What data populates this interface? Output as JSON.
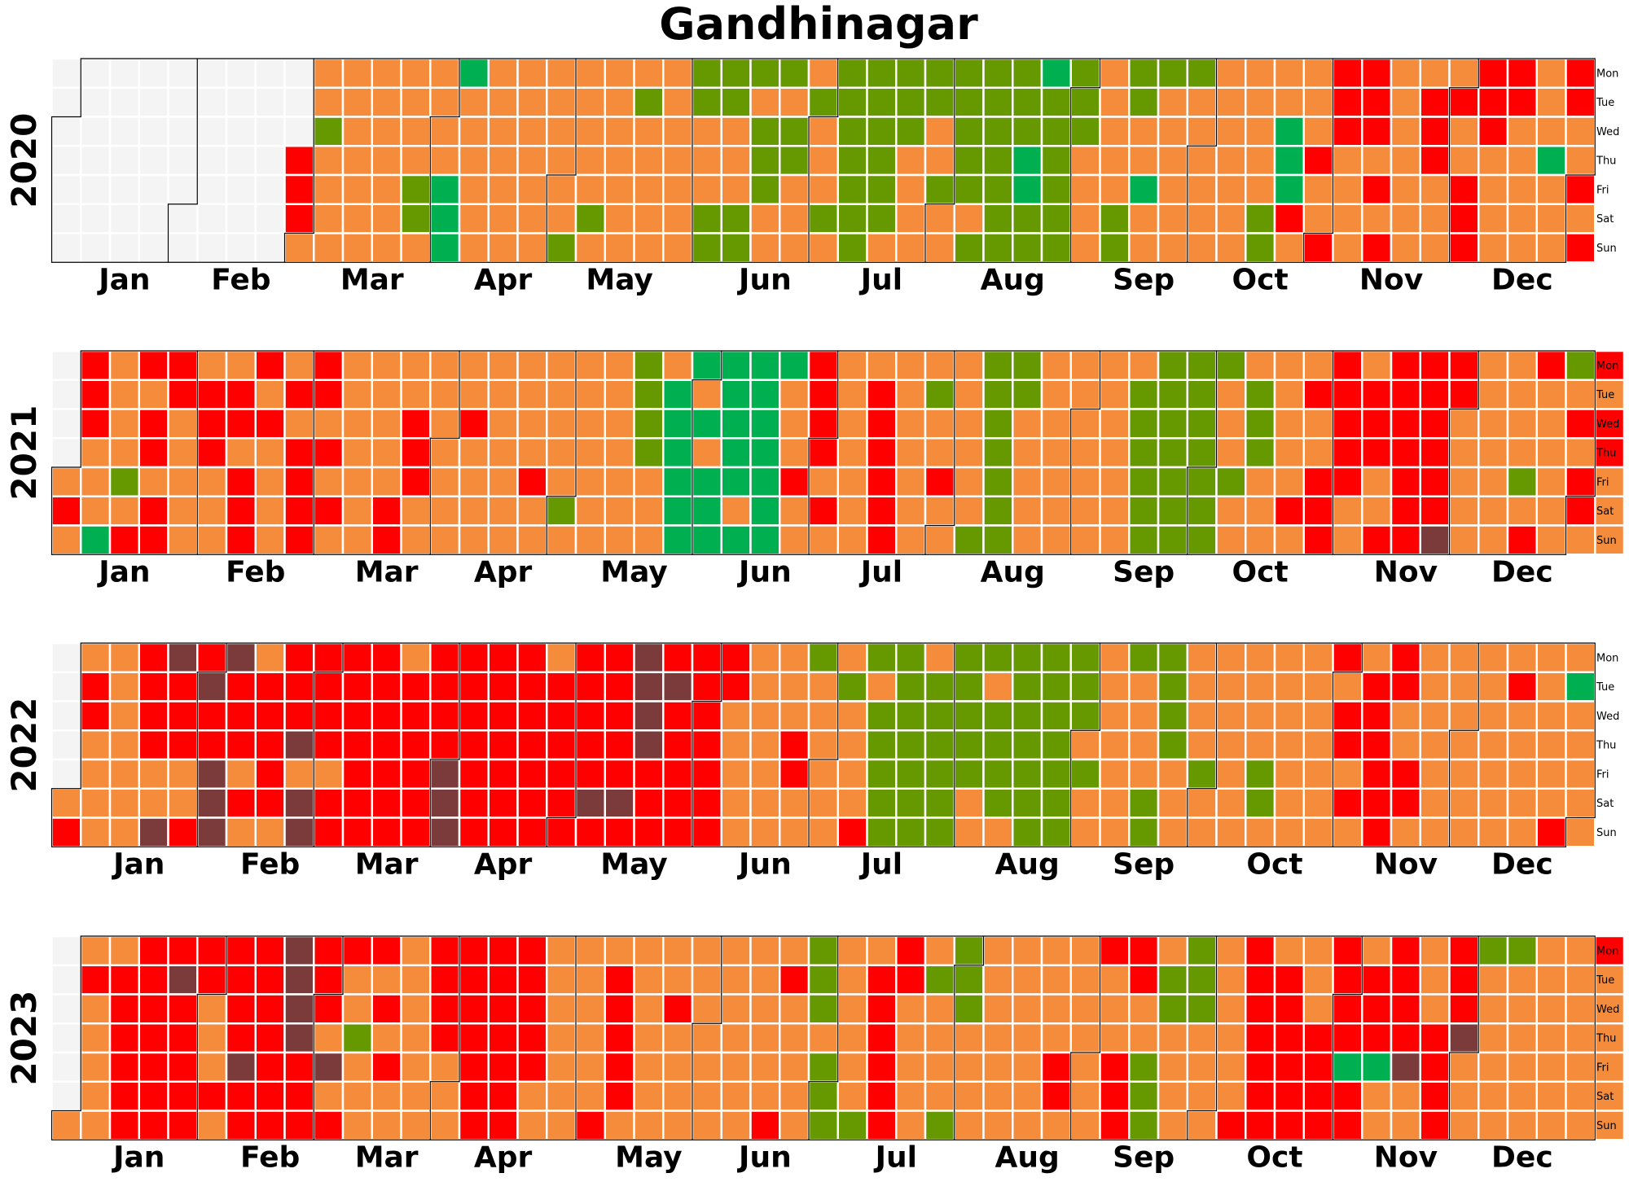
{
  "chart_data": {
    "type": "heatmap",
    "title": "Gandhinagar",
    "weekday_labels": [
      "Mon",
      "Tue",
      "Wed",
      "Thu",
      "Fri",
      "Sat",
      "Sun"
    ],
    "month_labels": [
      "Jan",
      "Feb",
      "Mar",
      "Apr",
      "May",
      "Jun",
      "Jul",
      "Aug",
      "Sep",
      "Oct",
      "Nov",
      "Dec"
    ],
    "category_colors": {
      "N": "#f4f4f4",
      "A": "#00b050",
      "B": "#669900",
      "C": "#f58c3c",
      "D": "#ff0000",
      "E": "#7b3b3b"
    },
    "years": [
      {
        "year": "2020",
        "weeks": [
          "NNNNNNN",
          "NNNNNNN",
          "NNNNNNN",
          "NNNNNNN",
          "NNNNNNN",
          "NNNNNNN",
          "NNNNNNN",
          "NNNNNNN",
          "NNNDDDC",
          "CCBCCCC",
          "CCCCCCC",
          "CCCCCCC",
          "CCCCBBC",
          "CCCCAAA",
          "ACCCCCC",
          "CCCCCCC",
          "CCCCCCC",
          "CCCCCCB",
          "CCCCCBC",
          "CCCCCCC",
          "CBCCCCC",
          "CCCCCCC",
          "BBCCCBB",
          "BBCCCBB",
          "BCBBBCC",
          "BCBBCCC",
          "CBCCCBC",
          "BBBBBBB",
          "BBBBBBC",
          "BBBCCCC",
          "BBCCBCC",
          "BBBBBCB",
          "BBBBBBB",
          "BBBAABB",
          "ABBBBBB",
          "BBBCCCC",
          "CCCCCBB",
          "BBCCACC",
          "BCCCCCC",
          "BCCCCCC",
          "CCCCCCC",
          "CCCCCBB",
          "CCAAADC",
          "CCCDCCD",
          "DDDCCCC",
          "DDDCDCD",
          "CCCCCCC",
          "CDDDCCC",
          "CDCCDDD",
          "DDDCCCC",
          "DDCCCCC",
          "CCCACCC",
          "DDCCDCD"
        ]
      },
      {
        "year": "2021",
        "weeks": [
          "NNNNCDC",
          "DDDCCCA",
          "CCCCBCD",
          "DCDDCDD",
          "DDCCCCC",
          "CDDDCCC",
          "CDDCDDD",
          "DCDCCCC",
          "CDCDDDD",
          "DDCDCDC",
          "CCCCCCC",
          "CCCCCDD",
          "CCDDDCC",
          "CCCCCCC",
          "CCDCCCC",
          "CCCCCCC",
          "CCCCDCC",
          "CCCCCBC",
          "CCCCCCC",
          "CCCCCCC",
          "BBBBCCC",
          "CAAAAAA",
          "ACACAAA",
          "AAAAACA",
          "AAAAAAA",
          "ACCCDCC",
          "DDDDCDC",
          "CCCCCCC",
          "CDDDDDD",
          "CCCCCCC",
          "CBCCDCC",
          "CCCCCCB",
          "BBBBBBB",
          "BBCCCCC",
          "CCCCCCC",
          "CCCCCCC",
          "CCCCCCC",
          "CBBBBBB",
          "BBBBBBB",
          "BBBBBBB",
          "BCCCBCC",
          "CBBBCCC",
          "CCCCCDC",
          "CDCCDDD",
          "DDDDDCC",
          "CDDDCCD",
          "DDDDDDD",
          "DDDDDDE",
          "DDCCCCC",
          "CCCCCCC",
          "CCCCBCD",
          "DCCCCCC",
          "BCDCDDC",
          "DCDDCCC"
        ]
      },
      {
        "year": "2022",
        "weeks": [
          "NNNNNCD",
          "CDDCCCC",
          "CCCCCCC",
          "DDDDCCE",
          "EDDDCCD",
          "DEDDEEE",
          "EDDDCDC",
          "CDDDDDC",
          "DDDECEE",
          "DDDDCDD",
          "DDDDDDD",
          "DDDDDDD",
          "CDDDDDD",
          "DDDDEEE",
          "DDDDDDD",
          "DDDDDDD",
          "DDDDDDD",
          "CDDDDDD",
          "DDDDDED",
          "DDDDDED",
          "EEEEDDD",
          "DEDDDDD",
          "DDDDDDD",
          "DDCCCCC",
          "CCCCCCC",
          "CCCDDCC",
          "BCCCCCC",
          "CBCCCCD",
          "BCBBBBB",
          "BBBBBBB",
          "CBBBBBB",
          "BBBBBCC",
          "BCBBBBC",
          "BBBBBBB",
          "BBBBBBB",
          "BBBCBCC",
          "CCCCCCC",
          "BCCCCBB",
          "BBBBCCC",
          "CCCCBCC",
          "CCCCCCC",
          "CCCCBBC",
          "CCCCCCC",
          "CCCCCCC",
          "DCDDCDC",
          "CDDDDDD",
          "DDCCDDC",
          "CCCCCCC",
          "CCCCCCC",
          "CCCCCCC",
          "CDCCCCC",
          "CCCCCCD",
          "CACCCCC"
        ]
      },
      {
        "year": "2023",
        "weeks": [
          "NNNNNNC",
          "CDCCCCC",
          "CDDDDDD",
          "DDDDDDD",
          "DEDDDDD",
          "DDCCCDC",
          "DDDDEDD",
          "DDDDDDD",
          "EEEEDDD",
          "DDDCECD",
          "DCCBCCC",
          "DCDCDCC",
          "CCCCCCC",
          "DDDDCCC",
          "DDDDDDD",
          "DDDDDDD",
          "DDDDDCC",
          "CCCCCCC",
          "CCCCCCD",
          "CDDDDDC",
          "CCCCCCC",
          "CCDCCCC",
          "CCCCCCC",
          "CCCCCCC",
          "CCCCCCD",
          "CDCCCCC",
          "BBBCBBB",
          "CCCCCCB",
          "CDDDDDD",
          "DDCCCCC",
          "CBCCCCB",
          "BBBCCCC",
          "CCCCCCC",
          "CCCCCCC",
          "CCCCDDC",
          "CCCCCCC",
          "DCCCDDD",
          "DDCCBBB",
          "CBBCCCC",
          "BBBCCCC",
          "CCCCCCD",
          "DDDDDDD",
          "CDDDDDD",
          "CCCDDDD",
          "DDDDADD",
          "CDDDACC",
          "DDDDECC",
          "CCCDDDD",
          "DDDECCC",
          "BCCCCCC",
          "BCCCCCC",
          "CCCCCCC",
          "CCCCCCC",
          "DCCCCCC"
        ]
      }
    ]
  }
}
